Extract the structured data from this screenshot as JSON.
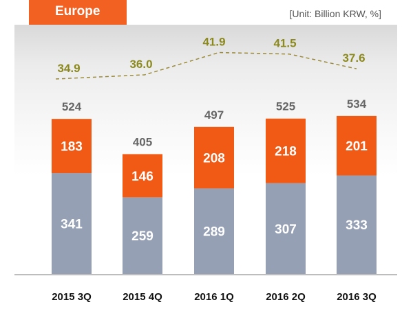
{
  "header": {
    "tab_label": "Europe",
    "unit_note": "[Unit: Billion KRW, %]"
  },
  "colors": {
    "accent": "#f26122",
    "bar_top": "#f05a14",
    "bar_bottom": "#96a0b4",
    "ratio_text": "#8c8a1e",
    "dash": "#9a8a3a",
    "total_text": "#666666"
  },
  "chart_data": {
    "type": "bar",
    "stacked": true,
    "categories": [
      "2015 3Q",
      "2015 4Q",
      "2016 1Q",
      "2016 2Q",
      "2016 3Q"
    ],
    "series": [
      {
        "values": [
          341,
          259,
          289,
          307,
          333
        ]
      },
      {
        "values": [
          183,
          146,
          208,
          218,
          201
        ]
      }
    ],
    "totals": [
      524,
      405,
      497,
      525,
      534
    ],
    "line_series": {
      "type": "line",
      "style": "dashed",
      "values": [
        34.9,
        36.0,
        41.9,
        41.5,
        37.6
      ]
    },
    "xlabel": "",
    "ylabel": "",
    "ylim": [
      0,
      600
    ]
  }
}
